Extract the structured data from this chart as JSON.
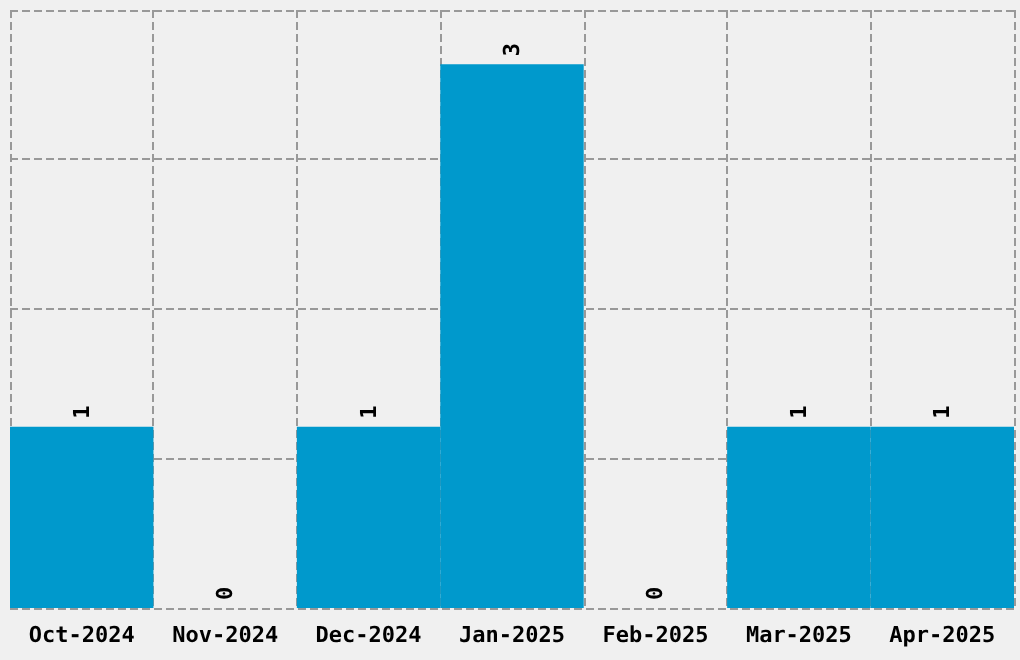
{
  "chart_data": {
    "type": "bar",
    "categories": [
      "Oct-2024",
      "Nov-2024",
      "Dec-2024",
      "Jan-2025",
      "Feb-2025",
      "Mar-2025",
      "Apr-2025"
    ],
    "values": [
      1,
      0,
      1,
      3,
      0,
      1,
      1
    ],
    "color": "#0099cc",
    "data_labels": true,
    "grid": true,
    "ylim": [
      0,
      3.3
    ],
    "yticks": [
      {
        "value": 0,
        "label": null
      },
      {
        "value": 0.825,
        "label": null
      },
      {
        "value": 1.65,
        "label": null
      },
      {
        "value": 2.475,
        "label": null
      },
      {
        "value": 3.3,
        "label": null
      }
    ],
    "tick_labels": "x"
  }
}
